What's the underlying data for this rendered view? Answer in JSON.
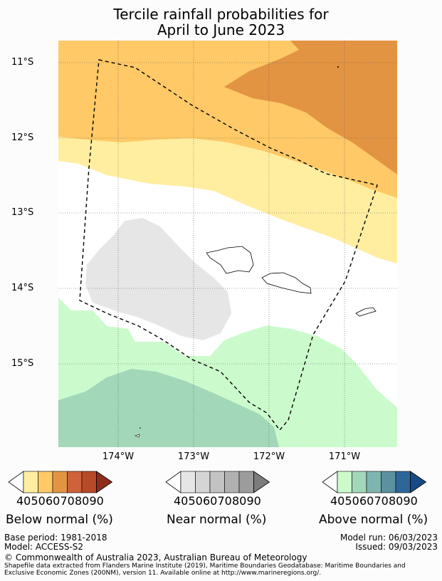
{
  "title_line1": "Tercile rainfall probabilities for",
  "title_line2": "April to June 2023",
  "lat_labels": [
    "11°S",
    "12°S",
    "13°S",
    "14°S",
    "15°S"
  ],
  "lon_labels": [
    "174°W",
    "173°W",
    "172°W",
    "171°W"
  ],
  "colorbars": {
    "below": {
      "label": "Below normal (%)",
      "ticks": [
        "40",
        "50",
        "60",
        "70",
        "80",
        "90"
      ],
      "colors": [
        "#fff",
        "#ffeea0",
        "#fec966",
        "#e39443",
        "#ce6238",
        "#b74a28",
        "#8f2c1c"
      ]
    },
    "near": {
      "label": "Near normal (%)",
      "ticks": [
        "40",
        "50",
        "60",
        "70",
        "80",
        "90"
      ],
      "colors": [
        "#fff",
        "#e6e6e6",
        "#d5d5d5",
        "#c3c3c3",
        "#b1b1b1",
        "#9c9c9c",
        "#7c7c7c"
      ]
    },
    "above": {
      "label": "Above normal (%)",
      "ticks": [
        "40",
        "50",
        "60",
        "70",
        "80",
        "90"
      ],
      "colors": [
        "#fff",
        "#cbfbcc",
        "#a3d7b9",
        "#7fb5b1",
        "#5c91a0",
        "#2e6797",
        "#174b86"
      ]
    }
  },
  "footer": {
    "base_period": "Base period: 1981-2018",
    "model": "Model: ACCESS-S2",
    "model_run": "Model run: 06/03/2023",
    "issued": "Issued: 09/03/2023",
    "copyright": "© Commonwealth of Australia 2023, Australian Bureau of Meteorology",
    "shapefile_line1": "Shapefile data extracted from Flanders Marine Institute (2019), Maritime Boundaries Geodatabase: Maritime Boundaries and",
    "shapefile_line2": "Exclusive Economic Zones (200NM), version 11. Available online at http://www.marineregions.org/."
  }
}
